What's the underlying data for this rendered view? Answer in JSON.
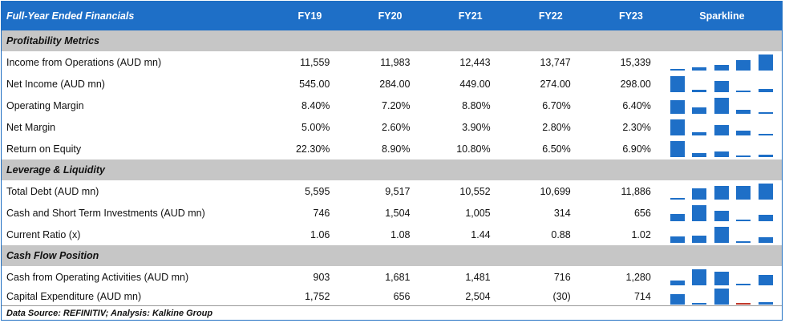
{
  "header": {
    "title": "Full-Year Ended Financials",
    "years": [
      "FY19",
      "FY20",
      "FY21",
      "FY22",
      "FY23"
    ],
    "sparkline": "Sparkline"
  },
  "sections": [
    {
      "title": "Profitability Metrics",
      "rows": [
        {
          "label": "Income from Operations (AUD mn)",
          "display": [
            "11,559",
            "11,983",
            "12,443",
            "13,747",
            "15,339"
          ],
          "values": [
            11559,
            11983,
            12443,
            13747,
            15339
          ]
        },
        {
          "label": "Net Income (AUD mn)",
          "display": [
            "545.00",
            "284.00",
            "449.00",
            "274.00",
            "298.00"
          ],
          "values": [
            545,
            284,
            449,
            274,
            298
          ]
        },
        {
          "label": "Operating Margin",
          "display": [
            "8.40%",
            "7.20%",
            "8.80%",
            "6.70%",
            "6.40%"
          ],
          "values": [
            8.4,
            7.2,
            8.8,
            6.7,
            6.4
          ]
        },
        {
          "label": "Net Margin",
          "display": [
            "5.00%",
            "2.60%",
            "3.90%",
            "2.80%",
            "2.30%"
          ],
          "values": [
            5.0,
            2.6,
            3.9,
            2.8,
            2.3
          ]
        },
        {
          "label": "Return on Equity",
          "display": [
            "22.30%",
            "8.90%",
            "10.80%",
            "6.50%",
            "6.90%"
          ],
          "values": [
            22.3,
            8.9,
            10.8,
            6.5,
            6.9
          ]
        }
      ]
    },
    {
      "title": "Leverage & Liquidity",
      "rows": [
        {
          "label": "Total Debt (AUD mn)",
          "display": [
            "5,595",
            "9,517",
            "10,552",
            "10,699",
            "11,886"
          ],
          "values": [
            5595,
            9517,
            10552,
            10699,
            11886
          ]
        },
        {
          "label": "Cash and Short Term Investments (AUD mn)",
          "display": [
            "746",
            "1,504",
            "1,005",
            "314",
            "656"
          ],
          "values": [
            746,
            1504,
            1005,
            314,
            656
          ]
        },
        {
          "label": "Current Ratio (x)",
          "display": [
            "1.06",
            "1.08",
            "1.44",
            "0.88",
            "1.02"
          ],
          "values": [
            1.06,
            1.08,
            1.44,
            0.88,
            1.02
          ]
        }
      ]
    },
    {
      "title": "Cash Flow Position",
      "rows": [
        {
          "label": "Cash from Operating Activities (AUD mn)",
          "display": [
            "903",
            "1,681",
            "1,481",
            "716",
            "1,280"
          ],
          "values": [
            903,
            1681,
            1481,
            716,
            1280
          ]
        },
        {
          "label": "Capital Expenditure (AUD mn)",
          "display": [
            "1,752",
            "656",
            "2,504",
            "(30)",
            "714"
          ],
          "values": [
            1752,
            656,
            2504,
            -30,
            714
          ]
        }
      ]
    }
  ],
  "footer": "Data Source: REFINITIV; Analysis: Kalkine Group",
  "colors": {
    "header": "#1e6fc7",
    "section": "#c6c6c6",
    "bar": "#1e6fc7",
    "negative_bar": "#c0392b"
  }
}
